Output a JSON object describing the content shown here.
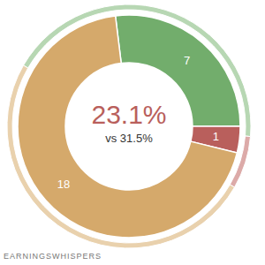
{
  "chart_data": {
    "type": "pie",
    "categories": [
      null,
      null,
      null
    ],
    "values": [
      7,
      1,
      18
    ],
    "colors": [
      "#72ad6c",
      "#b95f5c",
      "#d5a96b"
    ],
    "data_labels": true,
    "outer_values": [
      43,
      7,
      50
    ],
    "outer_colors": [
      "#b7d7b3",
      "#dcaaa8",
      "#e9d1ad"
    ],
    "center_text": "23.1%",
    "center_subtext": "vs 31.5%",
    "source": "EARNINGSWHISPERS"
  }
}
